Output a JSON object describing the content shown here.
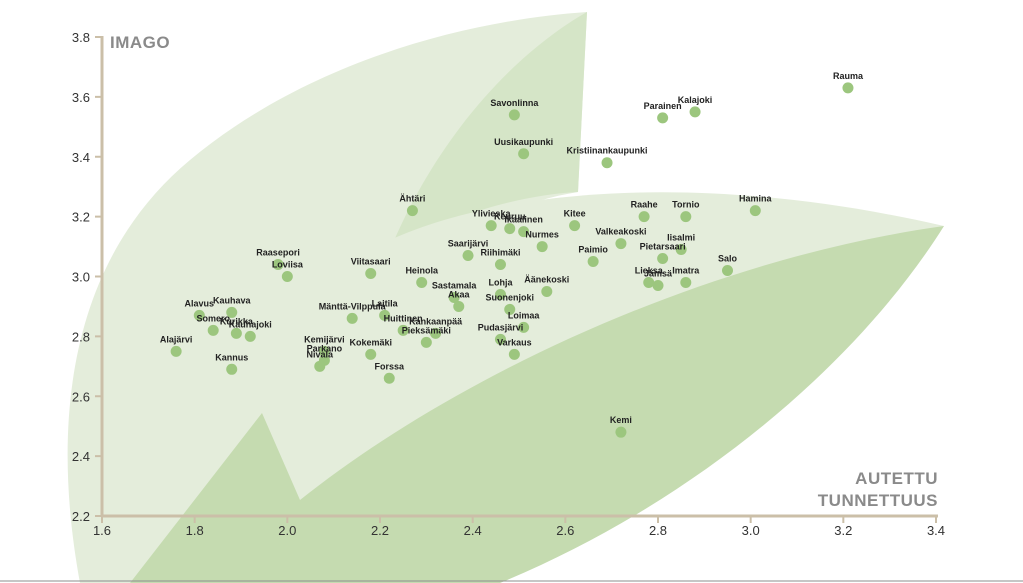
{
  "colors": {
    "axis": "#cbbfa8",
    "point": "#9cc67e",
    "leaf_light": "#e4eddb",
    "leaf_mid": "#d5e5c7",
    "leaf_dark": "#c5dbb0",
    "bottom_line": "#8c8c8c"
  },
  "chart_data": {
    "type": "scatter",
    "ylabel": "IMAGO",
    "xlabel_lines": [
      "AUTETTU",
      "TUNNETTUUS"
    ],
    "xlim": [
      1.6,
      3.4
    ],
    "ylim": [
      2.2,
      3.8
    ],
    "x_ticks": [
      "1.6",
      "1.8",
      "2.0",
      "2.2",
      "2.4",
      "2.6",
      "2.8",
      "3.0",
      "3.2",
      "3.4"
    ],
    "y_ticks": [
      "2.2",
      "2.4",
      "2.6",
      "2.8",
      "3.0",
      "3.2",
      "3.4",
      "3.6",
      "3.8"
    ],
    "points": [
      {
        "name": "Rauma",
        "x": 3.21,
        "y": 3.63
      },
      {
        "name": "Parainen",
        "x": 2.81,
        "y": 3.53
      },
      {
        "name": "Kalajoki",
        "x": 2.88,
        "y": 3.55
      },
      {
        "name": "Savonlinna",
        "x": 2.49,
        "y": 3.54
      },
      {
        "name": "Uusikaupunki",
        "x": 2.51,
        "y": 3.41
      },
      {
        "name": "Kristiinankaupunki",
        "x": 2.69,
        "y": 3.38
      },
      {
        "name": "Ähtäri",
        "x": 2.27,
        "y": 3.22
      },
      {
        "name": "Hamina",
        "x": 3.01,
        "y": 3.22
      },
      {
        "name": "Raahe",
        "x": 2.77,
        "y": 3.2
      },
      {
        "name": "Tornio",
        "x": 2.86,
        "y": 3.2
      },
      {
        "name": "Kitee",
        "x": 2.62,
        "y": 3.17
      },
      {
        "name": "Ylivieska",
        "x": 2.44,
        "y": 3.17
      },
      {
        "name": "Keuruu",
        "x": 2.48,
        "y": 3.16
      },
      {
        "name": "Ikaalinen",
        "x": 2.51,
        "y": 3.15
      },
      {
        "name": "Valkeakoski",
        "x": 2.72,
        "y": 3.11
      },
      {
        "name": "Iisalmi",
        "x": 2.85,
        "y": 3.09
      },
      {
        "name": "Nurmes",
        "x": 2.55,
        "y": 3.1
      },
      {
        "name": "Saarijärvi",
        "x": 2.39,
        "y": 3.07
      },
      {
        "name": "Pietarsaari",
        "x": 2.81,
        "y": 3.06
      },
      {
        "name": "Paimio",
        "x": 2.66,
        "y": 3.05
      },
      {
        "name": "Riihimäki",
        "x": 2.46,
        "y": 3.04
      },
      {
        "name": "Raasepori",
        "x": 1.98,
        "y": 3.04
      },
      {
        "name": "Loviisa",
        "x": 2.0,
        "y": 3.0
      },
      {
        "name": "Viitasaari",
        "x": 2.18,
        "y": 3.01
      },
      {
        "name": "Salo",
        "x": 2.95,
        "y": 3.02
      },
      {
        "name": "Heinola",
        "x": 2.29,
        "y": 2.98
      },
      {
        "name": "Lieksa",
        "x": 2.78,
        "y": 2.98
      },
      {
        "name": "Imatra",
        "x": 2.86,
        "y": 2.98
      },
      {
        "name": "Jämsä",
        "x": 2.8,
        "y": 2.97
      },
      {
        "name": "Äänekoski",
        "x": 2.56,
        "y": 2.95
      },
      {
        "name": "Lohja",
        "x": 2.46,
        "y": 2.94
      },
      {
        "name": "Sastamala",
        "x": 2.36,
        "y": 2.93
      },
      {
        "name": "Akaa",
        "x": 2.37,
        "y": 2.9
      },
      {
        "name": "Suonenjoki",
        "x": 2.48,
        "y": 2.89
      },
      {
        "name": "Alavus",
        "x": 1.81,
        "y": 2.87
      },
      {
        "name": "Kauhava",
        "x": 1.88,
        "y": 2.88
      },
      {
        "name": "Mänttä-Vilppula",
        "x": 2.14,
        "y": 2.86
      },
      {
        "name": "Laitila",
        "x": 2.21,
        "y": 2.87
      },
      {
        "name": "Somero",
        "x": 1.84,
        "y": 2.82
      },
      {
        "name": "Kurikka",
        "x": 1.89,
        "y": 2.81
      },
      {
        "name": "Kauhajoki",
        "x": 1.92,
        "y": 2.8
      },
      {
        "name": "Huittinen",
        "x": 2.25,
        "y": 2.82
      },
      {
        "name": "Loimaa",
        "x": 2.51,
        "y": 2.83
      },
      {
        "name": "Kankaanpää",
        "x": 2.32,
        "y": 2.81
      },
      {
        "name": "Pudasjärvi",
        "x": 2.46,
        "y": 2.79
      },
      {
        "name": "Pieksämäki",
        "x": 2.3,
        "y": 2.78
      },
      {
        "name": "Alajärvi",
        "x": 1.76,
        "y": 2.75
      },
      {
        "name": "Kemijärvi",
        "x": 2.08,
        "y": 2.75
      },
      {
        "name": "Kokemäki",
        "x": 2.18,
        "y": 2.74
      },
      {
        "name": "Varkaus",
        "x": 2.49,
        "y": 2.74
      },
      {
        "name": "Parkano",
        "x": 2.08,
        "y": 2.72
      },
      {
        "name": "Nivala",
        "x": 2.07,
        "y": 2.7
      },
      {
        "name": "Kannus",
        "x": 1.88,
        "y": 2.69
      },
      {
        "name": "Forssa",
        "x": 2.22,
        "y": 2.66
      },
      {
        "name": "Kemi",
        "x": 2.72,
        "y": 2.48
      }
    ]
  }
}
